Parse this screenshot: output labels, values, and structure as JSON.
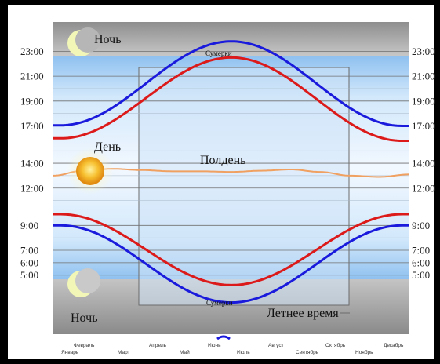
{
  "chart_data": {
    "type": "line",
    "title": "",
    "xlabel": "",
    "ylabel": "",
    "x_range": [
      0,
      12
    ],
    "y_range": [
      3,
      24
    ],
    "months": [
      "Январь",
      "Февраль",
      "Март",
      "Апрель",
      "Май",
      "Июнь",
      "Июль",
      "Август",
      "Сентябрь",
      "Октябрь",
      "Ноябрь",
      "Декабрь"
    ],
    "y_ticks": [
      {
        "value": 23,
        "label": "23:00"
      },
      {
        "value": 21,
        "label": "21:00"
      },
      {
        "value": 19,
        "label": "19:00"
      },
      {
        "value": 17,
        "label": "17:00"
      },
      {
        "value": 14,
        "label": "14:00"
      },
      {
        "value": 12,
        "label": "12:00"
      },
      {
        "value": 9,
        "label": "9:00"
      },
      {
        "value": 7,
        "label": "7:00"
      },
      {
        "value": 6,
        "label": "6:00"
      },
      {
        "value": 5,
        "label": "5:00"
      }
    ],
    "series": [
      {
        "color": "#1a1adc",
        "x": [
          0,
          0.25,
          6,
          11.75,
          12
        ],
        "values": [
          17.05,
          17.05,
          23.8,
          17.0,
          17.0
        ]
      },
      {
        "color": "#dc1a1a",
        "x": [
          0,
          0.25,
          6,
          11.75,
          12
        ],
        "values": [
          16.0,
          16.0,
          22.5,
          15.8,
          15.8
        ]
      },
      {
        "color": "#f0a060",
        "x": [
          0,
          1,
          2,
          3,
          4,
          5,
          6,
          7,
          8,
          9,
          10,
          11,
          12
        ],
        "values": [
          13.0,
          13.4,
          13.55,
          13.45,
          13.35,
          13.35,
          13.3,
          13.4,
          13.5,
          13.3,
          13.0,
          12.9,
          13.1
        ]
      },
      {
        "color": "#dc1a1a",
        "x": [
          0,
          0.25,
          6,
          11.75,
          12
        ],
        "values": [
          9.9,
          9.9,
          4.2,
          9.9,
          9.9
        ]
      },
      {
        "color": "#1a1adc",
        "x": [
          0,
          0.25,
          6,
          11.75,
          12
        ],
        "values": [
          9.0,
          9.0,
          2.8,
          9.0,
          9.0
        ]
      }
    ],
    "annotations": {
      "night_top": "Ночь",
      "night_bottom": "Ночь",
      "day": "День",
      "noon": "Полдень",
      "twilight_top": "Сумерки",
      "twilight_bottom": "Сумерки",
      "dst": "Летнее время"
    },
    "colors": {
      "night": "#9a9a9a",
      "day_light": "#e6f2ff",
      "day_deep": "#97c6f2",
      "grid": "#707070",
      "border": "#000000"
    }
  }
}
